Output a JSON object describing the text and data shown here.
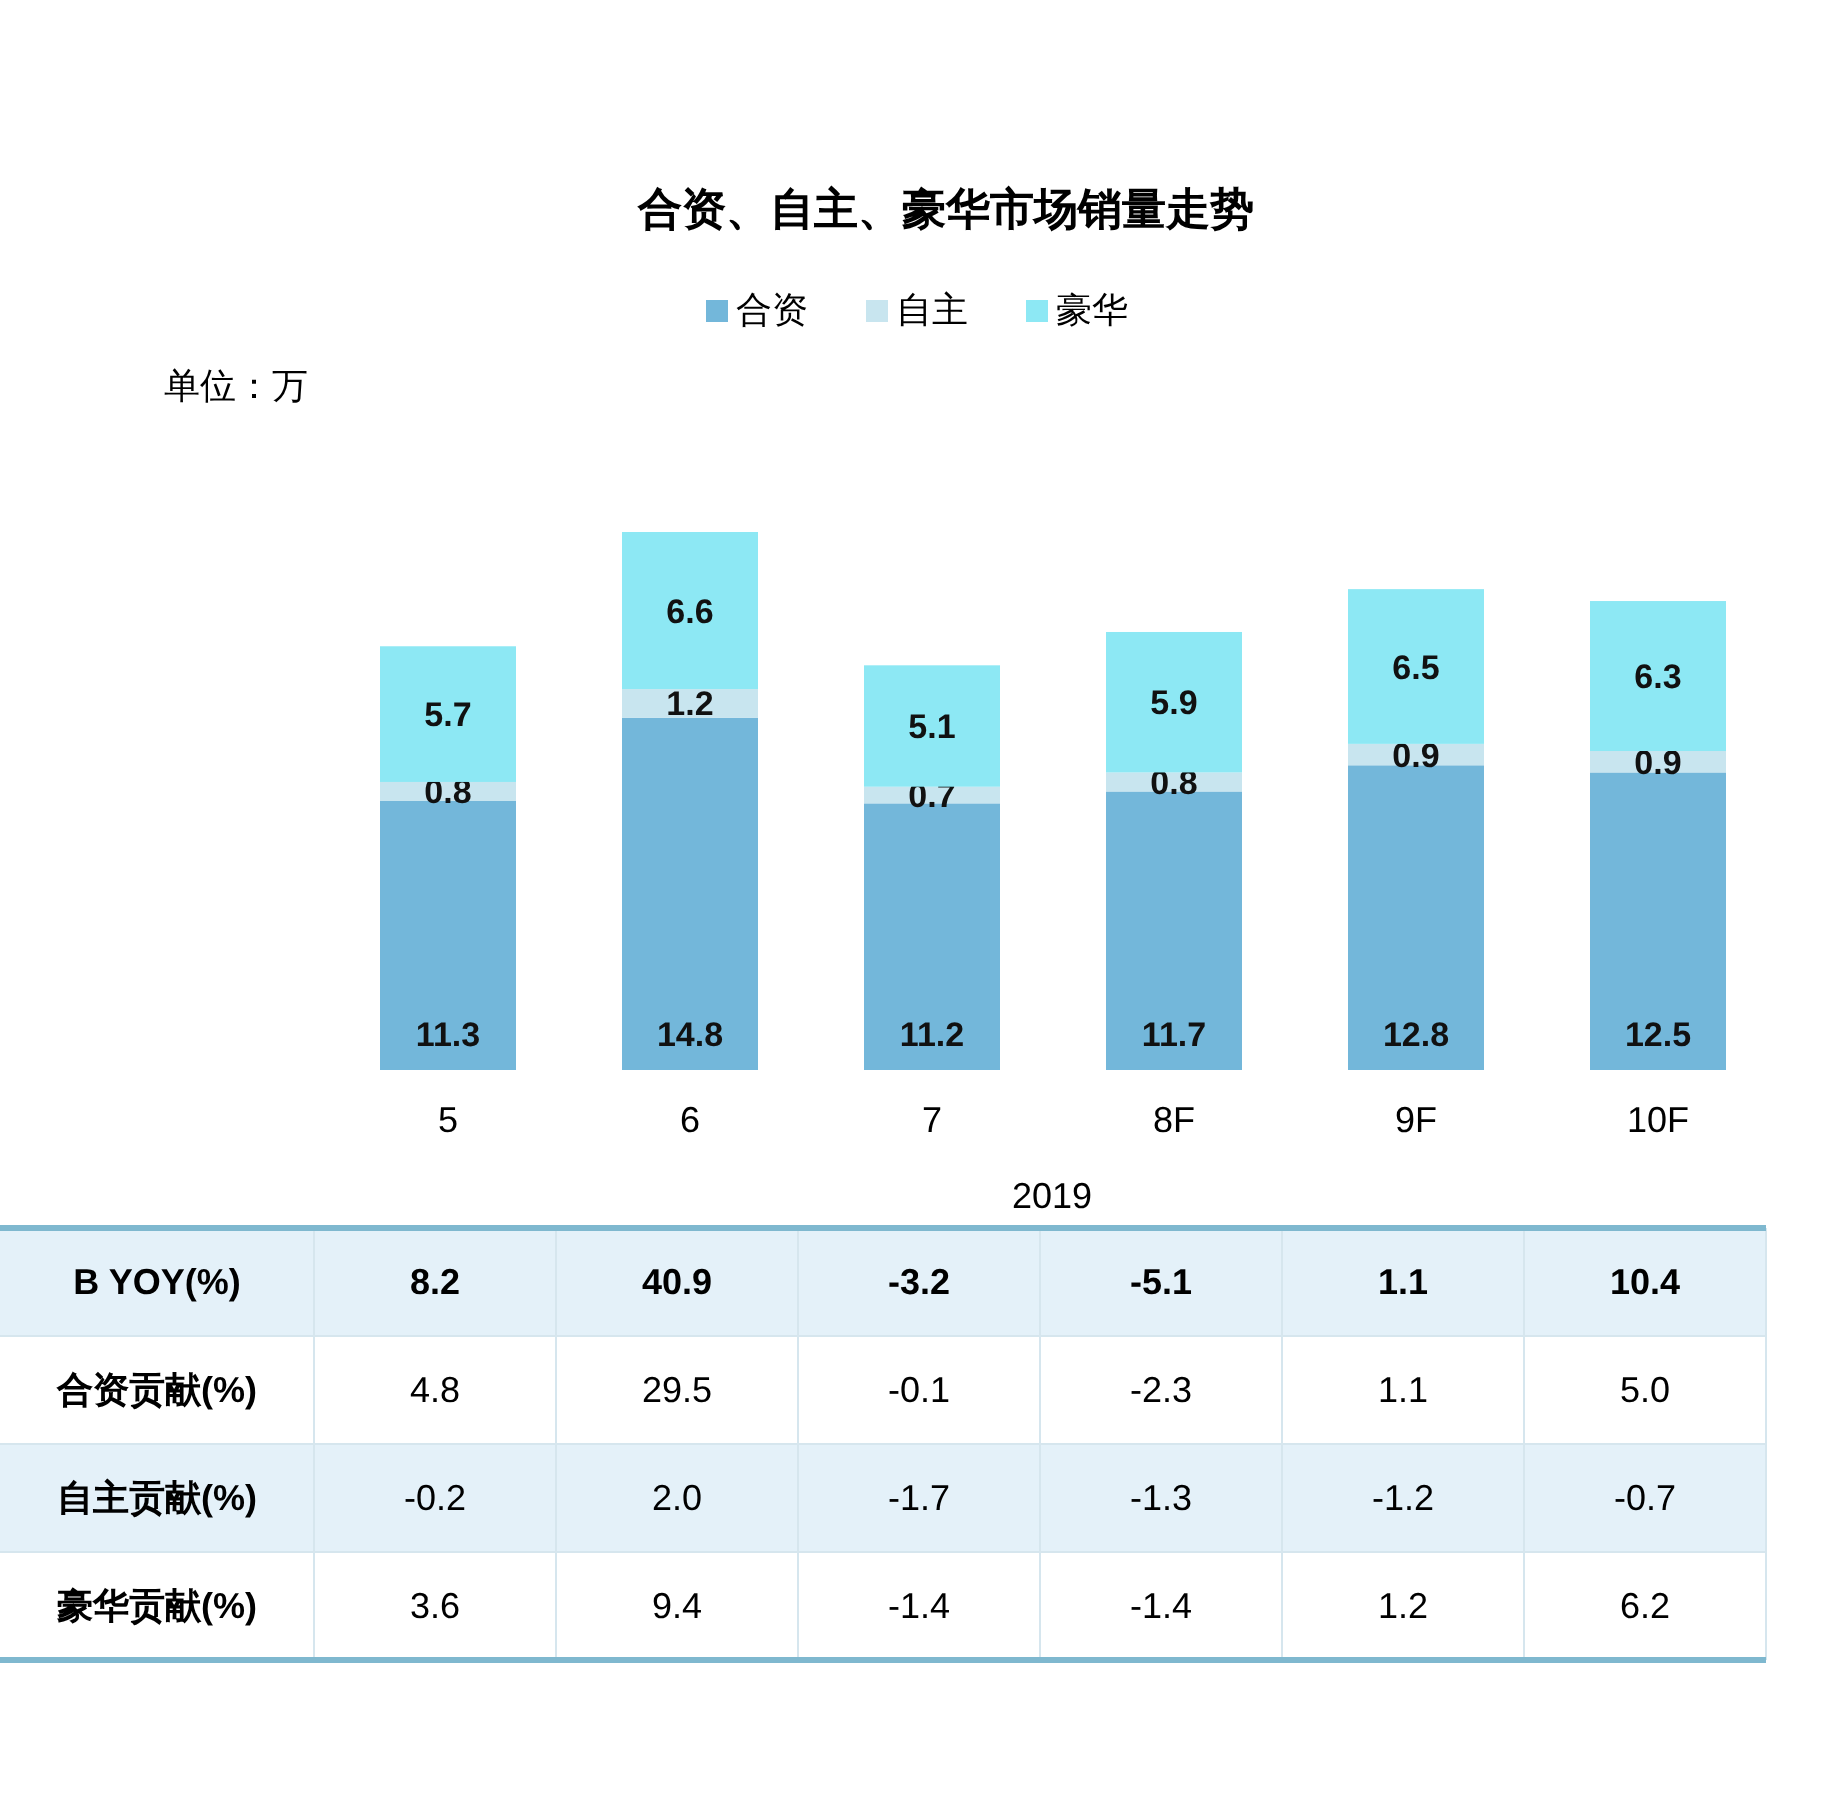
{
  "chart_data": [
    {
      "type": "bar",
      "title": "合资、自主、豪华市场销量走势",
      "ylabel": "单位：万",
      "xlabel": "2019",
      "categories": [
        "5",
        "6",
        "7",
        "8F",
        "9F",
        "10F"
      ],
      "stacked": true,
      "data_labels": true,
      "legend": "top",
      "series": [
        {
          "name": "合资",
          "color": "#73b7da",
          "values": [
            11.3,
            14.8,
            11.2,
            11.7,
            12.8,
            12.5
          ]
        },
        {
          "name": "自主",
          "color": "#c8e5ef",
          "values": [
            0.8,
            1.2,
            0.7,
            0.8,
            0.9,
            0.9
          ]
        },
        {
          "name": "豪华",
          "color": "#8de8f4",
          "values": [
            5.7,
            6.6,
            5.1,
            5.9,
            6.5,
            6.3
          ]
        }
      ]
    },
    {
      "type": "other",
      "categories": [
        null,
        null,
        null,
        null,
        null,
        null
      ],
      "y_categories": [
        "B YOY(%)",
        "合资贡献(%)",
        "自主贡献(%)",
        "豪华贡献(%)"
      ],
      "data_labels": true,
      "colors": [
        "#e4f1f9",
        "#ffffff",
        "#e4f1f9",
        "#ffffff"
      ],
      "cell_labels": [
        [
          "8.2",
          "40.9",
          "-3.2",
          "-5.1",
          "1.1",
          "10.4"
        ],
        [
          "4.8",
          "29.5",
          "-0.1",
          "-2.3",
          "1.1",
          "5.0"
        ],
        [
          "-0.2",
          "2.0",
          "-1.7",
          "-1.3",
          "-1.2",
          "-0.7"
        ],
        [
          "3.6",
          "9.4",
          "-1.4",
          "-1.4",
          "1.2",
          "6.2"
        ]
      ]
    }
  ]
}
